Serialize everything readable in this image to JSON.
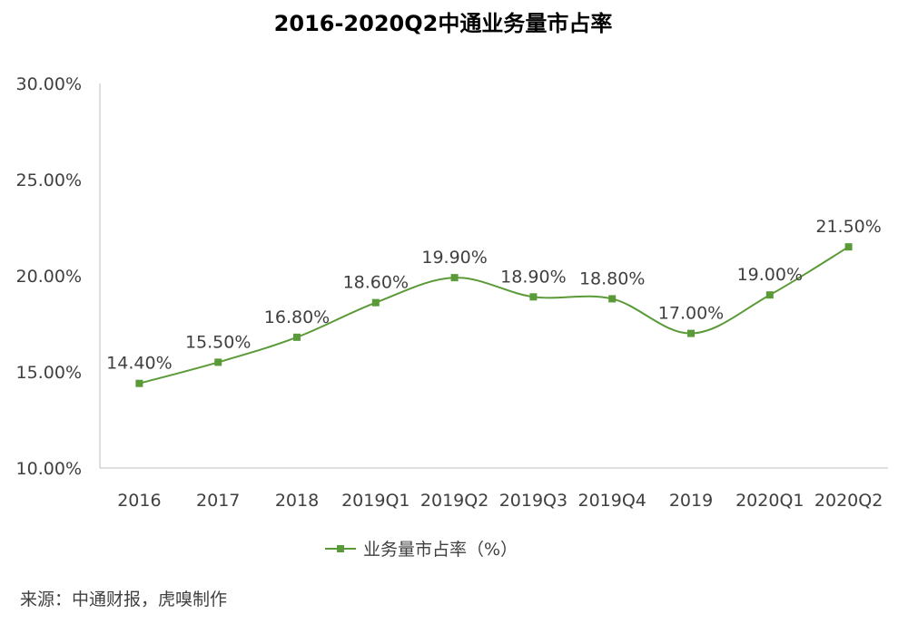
{
  "chart_data": {
    "type": "line",
    "title": "2016-2020Q2中通业务量市占率",
    "categories": [
      "2016",
      "2017",
      "2018",
      "2019Q1",
      "2019Q2",
      "2019Q3",
      "2019Q4",
      "2019",
      "2020Q1",
      "2020Q2"
    ],
    "series": [
      {
        "name": "业务量市占率（%）",
        "values": [
          14.4,
          15.5,
          16.8,
          18.6,
          19.9,
          18.9,
          18.8,
          17.0,
          19.0,
          21.5
        ],
        "labels": [
          "14.40%",
          "15.50%",
          "16.80%",
          "18.60%",
          "19.90%",
          "18.90%",
          "18.80%",
          "17.00%",
          "19.00%",
          "21.50%"
        ],
        "color": "#5B9A38"
      }
    ],
    "ylim": [
      10,
      30
    ],
    "yticks": [
      10,
      15,
      20,
      25,
      30
    ],
    "ytick_labels": [
      "10.00%",
      "15.00%",
      "20.00%",
      "25.00%",
      "30.00%"
    ],
    "smooth": true,
    "marker": "square",
    "grid": false,
    "legend": "bottom-center",
    "axis_color": "#BFBFBF"
  },
  "source": "来源：中通财报，虎嗅制作"
}
